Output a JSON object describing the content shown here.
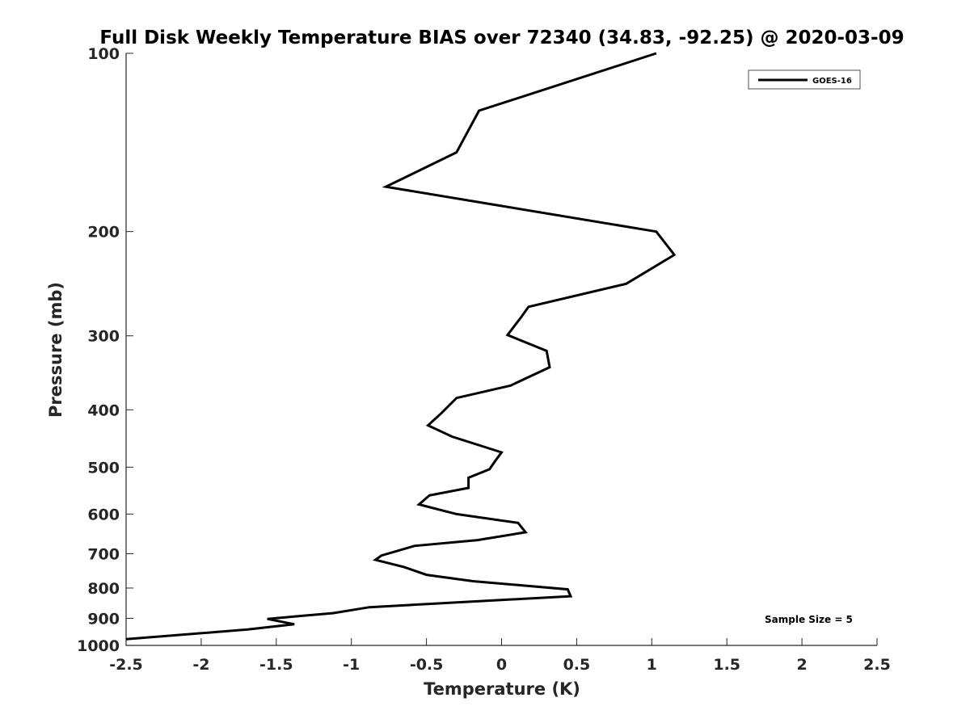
{
  "chart_data": {
    "type": "line",
    "title": "Full Disk Weekly Temperature BIAS over 72340 (34.83, -92.25) @ 2020-03-09",
    "xlabel": "Temperature (K)",
    "ylabel": "Pressure (mb)",
    "xlim": [
      -2.5,
      2.5
    ],
    "ylim": [
      100,
      1000
    ],
    "y_scale": "log",
    "y_inverted": true,
    "x_ticks": [
      "-2.5",
      "-2",
      "-1.5",
      "-1",
      "-0.5",
      "0",
      "0.5",
      "1",
      "1.5",
      "2",
      "2.5"
    ],
    "y_ticks": [
      "100",
      "200",
      "300",
      "400",
      "500",
      "600",
      "700",
      "800",
      "900",
      "1000"
    ],
    "grid": false,
    "legend_position": "top-right",
    "annotation": "Sample Size = 5",
    "series": [
      {
        "name": "GOES-16",
        "color": "#000000",
        "points": [
          [
            1.03,
            100
          ],
          [
            -0.15,
            125
          ],
          [
            -0.3,
            147
          ],
          [
            -0.77,
            168
          ],
          [
            1.03,
            200
          ],
          [
            1.15,
            219
          ],
          [
            0.83,
            245
          ],
          [
            0.18,
            268
          ],
          [
            0.13,
            279
          ],
          [
            0.04,
            299
          ],
          [
            0.3,
            318
          ],
          [
            0.32,
            339
          ],
          [
            0.06,
            364
          ],
          [
            -0.3,
            382
          ],
          [
            -0.4,
            405
          ],
          [
            -0.49,
            425
          ],
          [
            -0.33,
            444
          ],
          [
            0.0,
            472
          ],
          [
            -0.04,
            487
          ],
          [
            -0.08,
            504
          ],
          [
            -0.22,
            521
          ],
          [
            -0.22,
            542
          ],
          [
            -0.48,
            558
          ],
          [
            -0.55,
            578
          ],
          [
            -0.3,
            600
          ],
          [
            0.11,
            621
          ],
          [
            0.16,
            644
          ],
          [
            -0.16,
            664
          ],
          [
            -0.58,
            679
          ],
          [
            -0.8,
            705
          ],
          [
            -0.84,
            717
          ],
          [
            -0.65,
            737
          ],
          [
            -0.5,
            760
          ],
          [
            -0.19,
            779
          ],
          [
            0.44,
            804
          ],
          [
            0.46,
            826
          ],
          [
            -0.88,
            862
          ],
          [
            -1.12,
            882
          ],
          [
            -1.56,
            902
          ],
          [
            -1.38,
            921
          ],
          [
            -1.69,
            940
          ],
          [
            -2.5,
            976
          ]
        ]
      }
    ]
  }
}
